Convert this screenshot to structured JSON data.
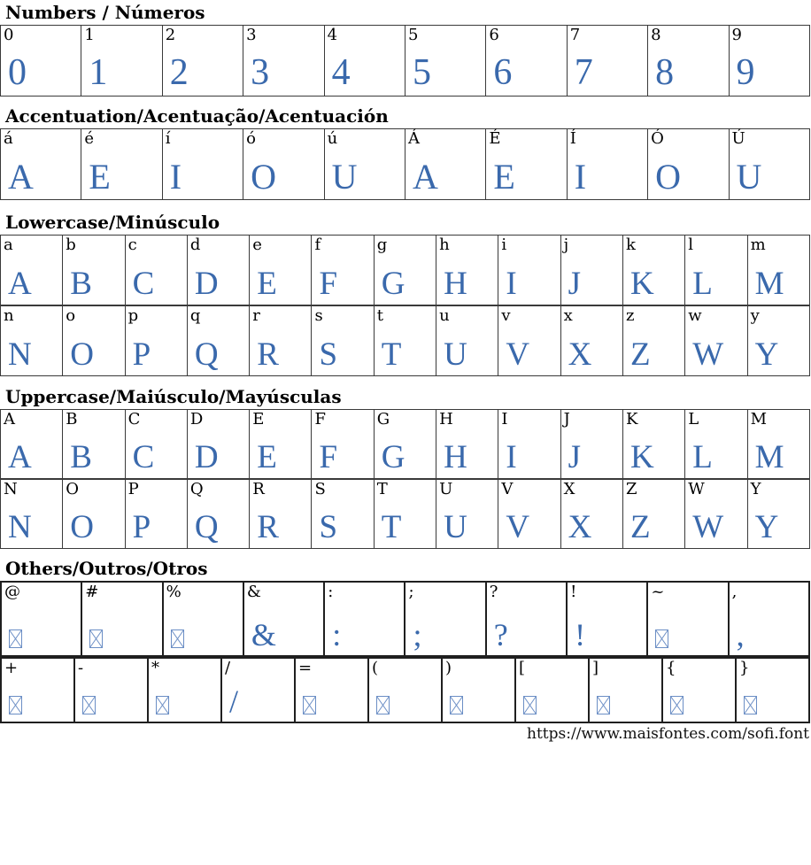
{
  "page": {
    "footer_url": "https://www.maisfontes.com/sofi.font",
    "glyph_color": "#3a69ac",
    "notdef_color": "#6b8ec5",
    "border_color_thin": "#3a3a3a",
    "border_color_thick": "#1f1f1f"
  },
  "sections": [
    {
      "id": "numbers",
      "title": "Numbers / Números",
      "style": "thin",
      "rows": [
        [
          {
            "char": "0",
            "glyph": "0"
          },
          {
            "char": "1",
            "glyph": "1"
          },
          {
            "char": "2",
            "glyph": "2"
          },
          {
            "char": "3",
            "glyph": "3"
          },
          {
            "char": "4",
            "glyph": "4"
          },
          {
            "char": "5",
            "glyph": "5"
          },
          {
            "char": "6",
            "glyph": "6"
          },
          {
            "char": "7",
            "glyph": "7"
          },
          {
            "char": "8",
            "glyph": "8"
          },
          {
            "char": "9",
            "glyph": "9"
          }
        ]
      ]
    },
    {
      "id": "accent",
      "title": "Accentuation/Acentuação/Acentuación",
      "style": "thin",
      "rows": [
        [
          {
            "char": "á",
            "glyph": "A"
          },
          {
            "char": "é",
            "glyph": "E"
          },
          {
            "char": "í",
            "glyph": "I"
          },
          {
            "char": "ó",
            "glyph": "O"
          },
          {
            "char": "ú",
            "glyph": "U"
          },
          {
            "char": "Á",
            "glyph": "A"
          },
          {
            "char": "É",
            "glyph": "E"
          },
          {
            "char": "Í",
            "glyph": "I"
          },
          {
            "char": "Ó",
            "glyph": "O"
          },
          {
            "char": "Ú",
            "glyph": "U"
          }
        ]
      ]
    },
    {
      "id": "lowercase",
      "title": "Lowercase/Minúsculo",
      "style": "thin",
      "rows": [
        [
          {
            "char": "a",
            "glyph": "A"
          },
          {
            "char": "b",
            "glyph": "B"
          },
          {
            "char": "c",
            "glyph": "C"
          },
          {
            "char": "d",
            "glyph": "D"
          },
          {
            "char": "e",
            "glyph": "E"
          },
          {
            "char": "f",
            "glyph": "F"
          },
          {
            "char": "g",
            "glyph": "G"
          },
          {
            "char": "h",
            "glyph": "H"
          },
          {
            "char": "i",
            "glyph": "I"
          },
          {
            "char": "j",
            "glyph": "J"
          },
          {
            "char": "k",
            "glyph": "K"
          },
          {
            "char": "l",
            "glyph": "L"
          },
          {
            "char": "m",
            "glyph": "M"
          }
        ],
        [
          {
            "char": "n",
            "glyph": "N"
          },
          {
            "char": "o",
            "glyph": "O"
          },
          {
            "char": "p",
            "glyph": "P"
          },
          {
            "char": "q",
            "glyph": "Q"
          },
          {
            "char": "r",
            "glyph": "R"
          },
          {
            "char": "s",
            "glyph": "S"
          },
          {
            "char": "t",
            "glyph": "T"
          },
          {
            "char": "u",
            "glyph": "U"
          },
          {
            "char": "v",
            "glyph": "V"
          },
          {
            "char": "x",
            "glyph": "X"
          },
          {
            "char": "z",
            "glyph": "Z"
          },
          {
            "char": "w",
            "glyph": "W"
          },
          {
            "char": "y",
            "glyph": "Y"
          }
        ]
      ]
    },
    {
      "id": "uppercase",
      "title": "Uppercase/Maiúsculo/Mayúsculas",
      "style": "thin",
      "rows": [
        [
          {
            "char": "A",
            "glyph": "A"
          },
          {
            "char": "B",
            "glyph": "B"
          },
          {
            "char": "C",
            "glyph": "C"
          },
          {
            "char": "D",
            "glyph": "D"
          },
          {
            "char": "E",
            "glyph": "E"
          },
          {
            "char": "F",
            "glyph": "F"
          },
          {
            "char": "G",
            "glyph": "G"
          },
          {
            "char": "H",
            "glyph": "H"
          },
          {
            "char": "I",
            "glyph": "I"
          },
          {
            "char": "J",
            "glyph": "J"
          },
          {
            "char": "K",
            "glyph": "K"
          },
          {
            "char": "L",
            "glyph": "L"
          },
          {
            "char": "M",
            "glyph": "M"
          }
        ],
        [
          {
            "char": "N",
            "glyph": "N"
          },
          {
            "char": "O",
            "glyph": "O"
          },
          {
            "char": "P",
            "glyph": "P"
          },
          {
            "char": "Q",
            "glyph": "Q"
          },
          {
            "char": "R",
            "glyph": "R"
          },
          {
            "char": "S",
            "glyph": "S"
          },
          {
            "char": "T",
            "glyph": "T"
          },
          {
            "char": "U",
            "glyph": "U"
          },
          {
            "char": "V",
            "glyph": "V"
          },
          {
            "char": "X",
            "glyph": "X"
          },
          {
            "char": "Z",
            "glyph": "Z"
          },
          {
            "char": "W",
            "glyph": "W"
          },
          {
            "char": "Y",
            "glyph": "Y"
          }
        ]
      ]
    },
    {
      "id": "others",
      "title": "Others/Outros/Otros",
      "style": "thick",
      "rows": [
        [
          {
            "char": "@",
            "glyph": null
          },
          {
            "char": "#",
            "glyph": null
          },
          {
            "char": "%",
            "glyph": null
          },
          {
            "char": "&",
            "glyph": "&"
          },
          {
            "char": ":",
            "glyph": ":"
          },
          {
            "char": ";",
            "glyph": ";"
          },
          {
            "char": "?",
            "glyph": "?"
          },
          {
            "char": "!",
            "glyph": "!"
          },
          {
            "char": "~",
            "glyph": null
          },
          {
            "char": ",",
            "glyph": ","
          }
        ],
        [
          {
            "char": "+",
            "glyph": null
          },
          {
            "char": "-",
            "glyph": null
          },
          {
            "char": "*",
            "glyph": null
          },
          {
            "char": "/",
            "glyph": "/"
          },
          {
            "char": "=",
            "glyph": null
          },
          {
            "char": "(",
            "glyph": null
          },
          {
            "char": ")",
            "glyph": null
          },
          {
            "char": "[",
            "glyph": null
          },
          {
            "char": "]",
            "glyph": null
          },
          {
            "char": "{",
            "glyph": null
          },
          {
            "char": "}",
            "glyph": null
          }
        ]
      ]
    }
  ]
}
